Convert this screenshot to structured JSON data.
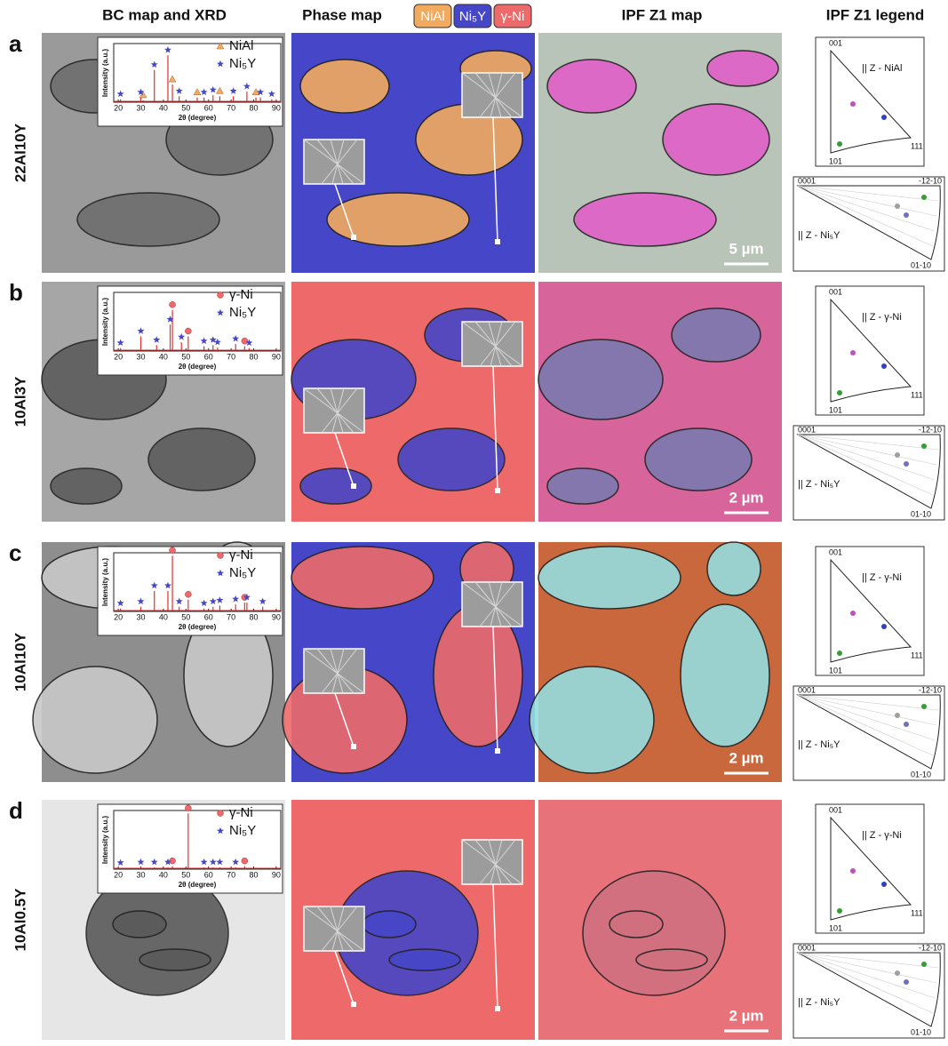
{
  "column_headers": [
    "BC map and XRD",
    "Phase map",
    "IPF Z1 map",
    "IPF Z1 legend"
  ],
  "phase_legend": [
    {
      "label": "NiAl",
      "color": "#f2aa5e"
    },
    {
      "label": "Ni₅Y",
      "color": "#4646c8"
    },
    {
      "label": "γ-Ni",
      "color": "#ee6a6a"
    }
  ],
  "rows": [
    {
      "letter": "a",
      "sample": "22Al10Y",
      "scale_bar": "5 µm",
      "xrd": {
        "ylabel": "Intensity (a.u.)",
        "xlabel": "2θ (degree)",
        "xlim": [
          18,
          92
        ],
        "xticks": [
          20,
          30,
          40,
          50,
          60,
          70,
          80,
          90
        ],
        "ylim": [
          0,
          100
        ],
        "series": [
          {
            "name": "NiAl",
            "marker": "triangle",
            "color": "#f2aa5e",
            "peaks_x": [
              31,
              44,
              55,
              65,
              81
            ],
            "peaks_y": [
              3,
              30,
              8,
              10,
              8
            ]
          },
          {
            "name": "Ni₅Y",
            "marker": "star",
            "color": "#4646c8",
            "peaks_x": [
              21,
              30,
              36,
              42,
              47,
              58,
              62,
              71,
              77,
              83,
              88
            ],
            "peaks_y": [
              5,
              8,
              55,
              80,
              10,
              8,
              12,
              10,
              18,
              8,
              5
            ]
          }
        ]
      },
      "ipf_cubic": {
        "vertices": [
          "001",
          "101",
          "111"
        ],
        "label": "|| Z - NiAl"
      },
      "ipf_hex": {
        "vertices": [
          "0001",
          "-12-10",
          "01-10"
        ],
        "label": "|| Z - Ni₅Y"
      }
    },
    {
      "letter": "b",
      "sample": "10Al3Y",
      "scale_bar": "2 µm",
      "xrd": {
        "ylabel": "Intensity (a.u.)",
        "xlabel": "2θ (degree)",
        "xlim": [
          18,
          92
        ],
        "xticks": [
          20,
          30,
          40,
          50,
          60,
          70,
          80,
          90
        ],
        "ylim": [
          0,
          100
        ],
        "series": [
          {
            "name": "γ-Ni",
            "marker": "circle",
            "color": "#ee6a6a",
            "peaks_x": [
              44,
              51,
              76
            ],
            "peaks_y": [
              70,
              25,
              8
            ]
          },
          {
            "name": "Ni₅Y",
            "marker": "star",
            "color": "#4646c8",
            "peaks_x": [
              21,
              30,
              37,
              43,
              48,
              58,
              62,
              64,
              72,
              78
            ],
            "peaks_y": [
              5,
              25,
              10,
              45,
              15,
              8,
              10,
              6,
              12,
              5
            ]
          }
        ]
      },
      "ipf_cubic": {
        "vertices": [
          "001",
          "101",
          "111"
        ],
        "label": "|| Z - γ-Ni"
      },
      "ipf_hex": {
        "vertices": [
          "0001",
          "-12-10",
          "01-10"
        ],
        "label": "|| Z - Ni₅Y"
      }
    },
    {
      "letter": "c",
      "sample": "10Al10Y",
      "scale_bar": "2 µm",
      "xrd": {
        "ylabel": "Intensity (a.u.)",
        "xlabel": "2θ (degree)",
        "xlim": [
          18,
          92
        ],
        "xticks": [
          20,
          30,
          40,
          50,
          60,
          70,
          80,
          90
        ],
        "ylim": [
          0,
          100
        ],
        "series": [
          {
            "name": "γ-Ni",
            "marker": "circle",
            "color": "#ee6a6a",
            "peaks_x": [
              44,
              51,
              76
            ],
            "peaks_y": [
              95,
              20,
              15
            ]
          },
          {
            "name": "Ni₅Y",
            "marker": "star",
            "color": "#4646c8",
            "peaks_x": [
              21,
              30,
              36,
              42,
              47,
              58,
              62,
              65,
              72,
              77,
              84
            ],
            "peaks_y": [
              5,
              8,
              35,
              35,
              8,
              5,
              8,
              10,
              12,
              15,
              8
            ]
          }
        ]
      },
      "ipf_cubic": {
        "vertices": [
          "001",
          "101",
          "111"
        ],
        "label": "|| Z - γ-Ni"
      },
      "ipf_hex": {
        "vertices": [
          "0001",
          "-12-10",
          "01-10"
        ],
        "label": "|| Z - Ni₅Y"
      }
    },
    {
      "letter": "d",
      "sample": "10Al0.5Y",
      "scale_bar": "2 µm",
      "xrd": {
        "ylabel": "Intensity (a.u.)",
        "xlabel": "2θ (degree)",
        "xlim": [
          18,
          92
        ],
        "xticks": [
          20,
          30,
          40,
          50,
          60,
          70,
          80,
          90
        ],
        "ylim": [
          0,
          100
        ],
        "series": [
          {
            "name": "γ-Ni",
            "marker": "circle",
            "color": "#ee6a6a",
            "peaks_x": [
              44,
              51,
              76
            ],
            "peaks_y": [
              5,
              95,
              5
            ]
          },
          {
            "name": "Ni₅Y",
            "marker": "star",
            "color": "#4646c8",
            "peaks_x": [
              21,
              30,
              36,
              42,
              58,
              62,
              65,
              72
            ],
            "peaks_y": [
              2,
              3,
              3,
              3,
              3,
              3,
              3,
              3
            ]
          }
        ]
      },
      "ipf_cubic": {
        "vertices": [
          "001",
          "101",
          "111"
        ],
        "label": "|| Z - γ-Ni"
      },
      "ipf_hex": {
        "vertices": [
          "0001",
          "-12-10",
          "01-10"
        ],
        "label": "|| Z - Ni₅Y"
      }
    }
  ]
}
